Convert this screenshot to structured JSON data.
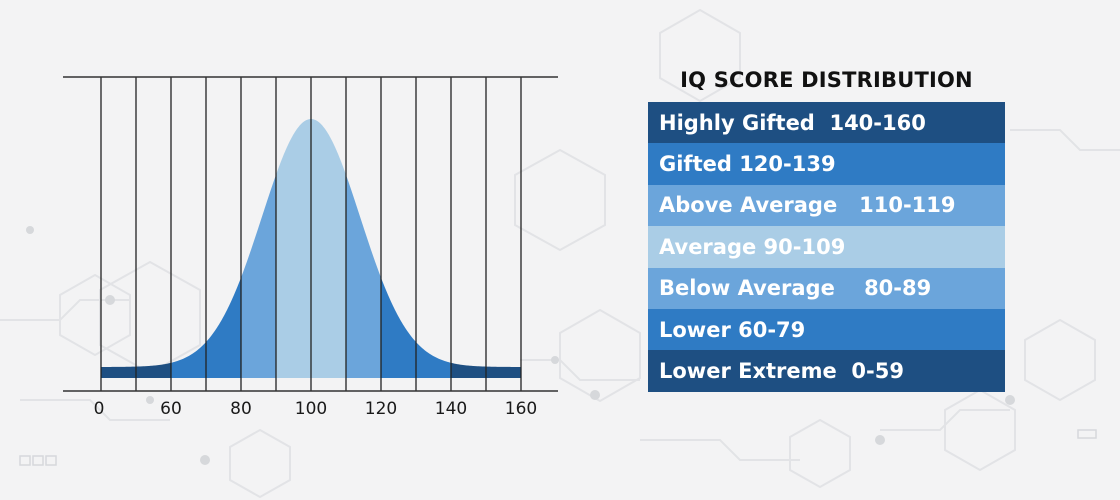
{
  "chart_data": {
    "type": "area",
    "title": "",
    "xlabel": "",
    "ylabel": "",
    "x_tick_labels": [
      "0",
      "60",
      "80",
      "100",
      "120",
      "140",
      "160"
    ],
    "distribution": {
      "kind": "normal",
      "mean": 100,
      "sd": 15
    },
    "bands": [
      {
        "range": [
          0,
          59
        ],
        "color": "#1e4f82"
      },
      {
        "range": [
          60,
          79
        ],
        "color": "#2f7bc4"
      },
      {
        "range": [
          80,
          89
        ],
        "color": "#6ba5db"
      },
      {
        "range": [
          90,
          109
        ],
        "color": "#aacde6"
      },
      {
        "range": [
          110,
          119
        ],
        "color": "#6ba5db"
      },
      {
        "range": [
          120,
          139
        ],
        "color": "#2f7bc4"
      },
      {
        "range": [
          140,
          160
        ],
        "color": "#1e4f82"
      }
    ],
    "grid": true
  },
  "legend": {
    "title": "IQ SCORE DISTRIBUTION",
    "rows": [
      {
        "label": "Highly Gifted  140-160",
        "color": "#1e4f82"
      },
      {
        "label": "Gifted 120-139",
        "color": "#2f7bc4"
      },
      {
        "label": "Above Average   110-119",
        "color": "#6ba5db"
      },
      {
        "label": "Average 90-109",
        "color": "#aacde6"
      },
      {
        "label": "Below Average    80-89",
        "color": "#6ba5db"
      },
      {
        "label": "Lower 60-79",
        "color": "#2f7bc4"
      },
      {
        "label": "Lower Extreme  0-59",
        "color": "#1e4f82"
      }
    ]
  }
}
